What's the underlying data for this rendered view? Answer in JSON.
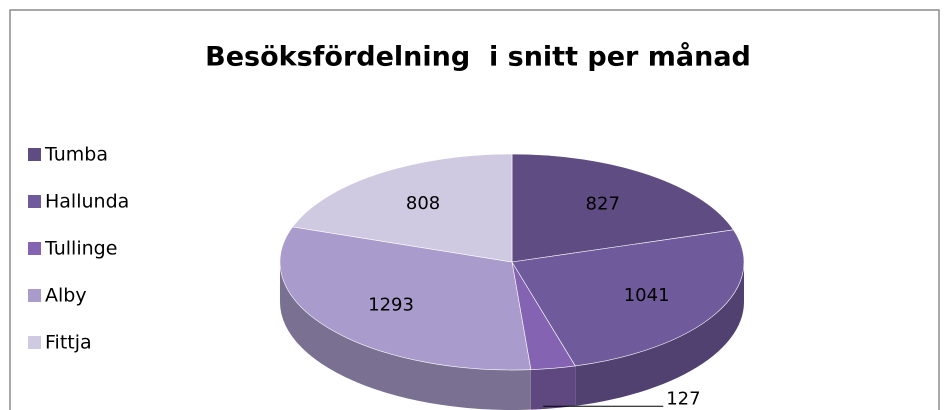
{
  "chart_data": {
    "type": "pie",
    "title": "Besöksfördelning  i snitt per månad",
    "categories": [
      "Tumba",
      "Hallunda",
      "Tullinge",
      "Alby",
      "Fittja"
    ],
    "values": [
      827,
      1041,
      127,
      1293,
      808
    ],
    "colors": [
      "#5e4c82",
      "#6f5a9c",
      "#8464b2",
      "#a99bcb",
      "#d0c9e2"
    ],
    "legend": "left"
  }
}
